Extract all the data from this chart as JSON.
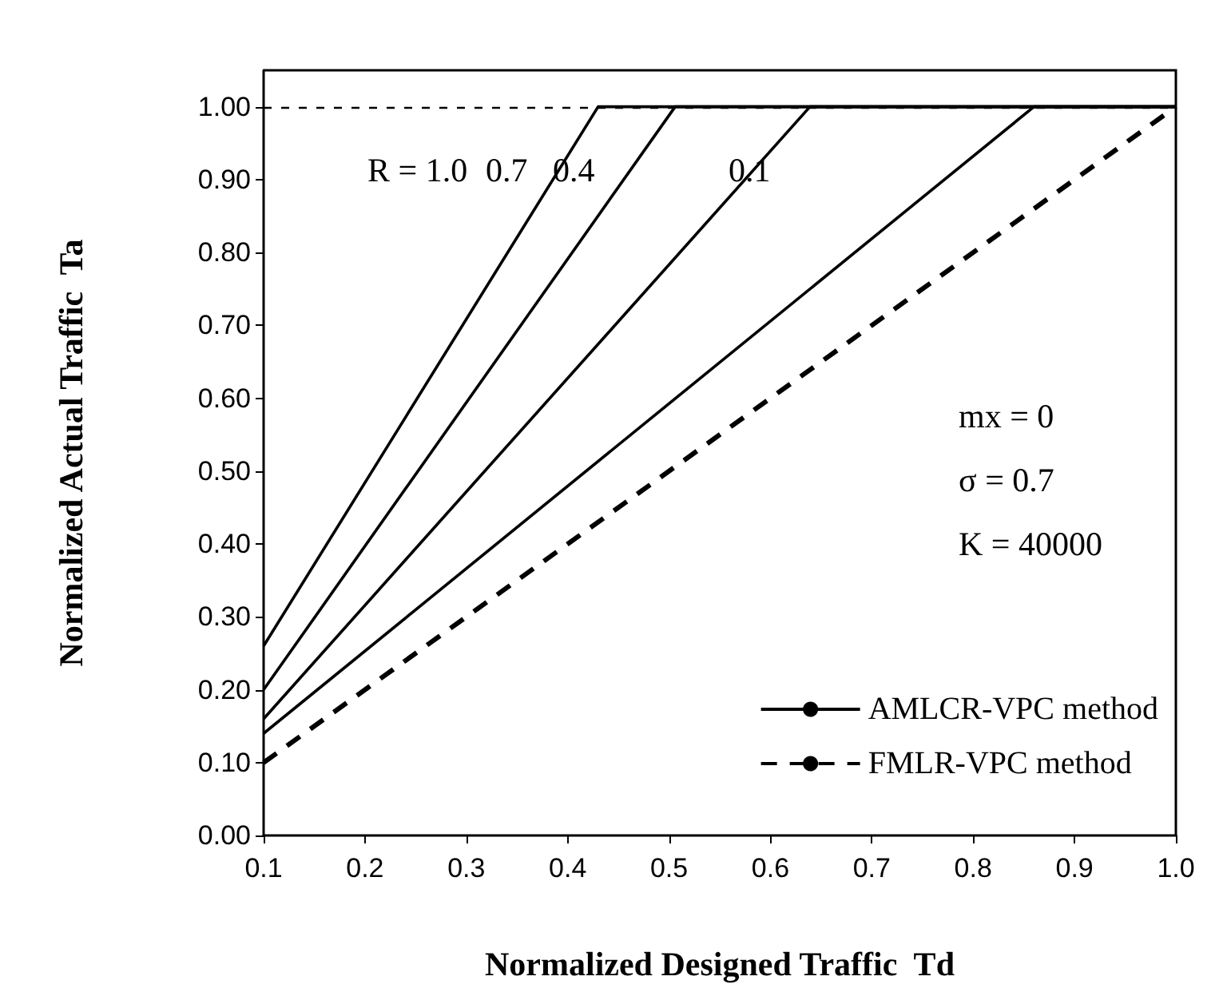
{
  "chart_data": {
    "type": "line",
    "xlabel": "Normalized Designed Traffic  Td",
    "ylabel": "Normalized Actual Traffic  Ta",
    "xlim": [
      0.1,
      1.0
    ],
    "xticks": [
      0.1,
      0.2,
      0.3,
      0.4,
      0.5,
      0.6,
      0.7,
      0.8,
      0.9,
      {
        "value": 1.0,
        "label": "1.0"
      }
    ],
    "ylim": [
      0,
      1.05
    ],
    "yticks": [
      {
        "value": 0,
        "label": "0.00"
      },
      {
        "value": 0.1,
        "label": "0.10"
      },
      {
        "value": 0.2,
        "label": "0.20"
      },
      {
        "value": 0.3,
        "label": "0.30"
      },
      {
        "value": 0.4,
        "label": "0.40"
      },
      {
        "value": 0.5,
        "label": "0.50"
      },
      {
        "value": 0.6,
        "label": "0.60"
      },
      {
        "value": 0.7,
        "label": "0.70"
      },
      {
        "value": 0.8,
        "label": "0.80"
      },
      {
        "value": 0.9,
        "label": "0.90"
      },
      {
        "value": 1.0,
        "label": "1.00"
      }
    ],
    "grid": false,
    "legend": "bottom right",
    "marker": "none",
    "series": [
      {
        "name": "AMLCR-VPC method",
        "color": "#000000",
        "line_style": "solid",
        "x": [
          0.1,
          0.43,
          1.0
        ],
        "values": [
          0.26,
          1.0,
          1.0
        ]
      },
      {
        "color": "#000000",
        "line_style": "solid",
        "x": [
          0.1,
          0.506,
          1.0
        ],
        "values": [
          0.2,
          1.0,
          1.0
        ]
      },
      {
        "color": "#000000",
        "line_style": "solid",
        "x": [
          0.1,
          0.639,
          1.0
        ],
        "values": [
          0.16,
          1.0,
          1.0
        ]
      },
      {
        "color": "#000000",
        "line_style": "solid",
        "x": [
          0.1,
          0.86,
          1.0
        ],
        "values": [
          0.14,
          1.0,
          1.0
        ]
      },
      {
        "name": "FMLR-VPC method",
        "color": "#000000",
        "line_style": "dashed",
        "x": [
          0.1,
          1.0
        ],
        "values": [
          0.1,
          1.0
        ]
      }
    ],
    "ref_lines": [
      {
        "axis": "y",
        "value": 1.0,
        "line_style": "dashed",
        "color": "#000000"
      }
    ],
    "annotations": [
      "R = 1.0",
      "0.7",
      "0.4",
      "0.1",
      "mx = 0",
      "σ = 0.7",
      "K = 40000"
    ]
  }
}
